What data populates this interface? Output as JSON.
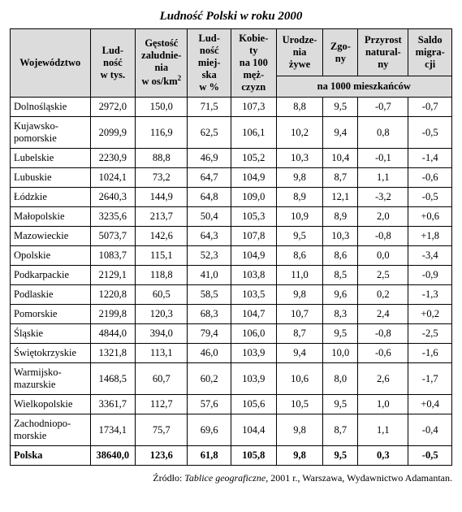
{
  "title": "Ludność Polski w roku 2000",
  "headers": {
    "woj": "Województwo",
    "ludnosc": "Lud-\nność\nw tys.",
    "gestosc_pre": "Gęstość\nzaludnie-\nnia\nw os/km",
    "gestosc_sup": "2",
    "miejska": "Lud-\nność\nmiej-\nska\nw %",
    "kobiety": "Kobie-\nty\nna 100\nmęż-\nczyzn",
    "urodzenia": "Urodze-\nnia\nżywe",
    "zgony": "Zgo-\nny",
    "przyrost": "Przyrost\nnatural-\nny",
    "saldo": "Saldo\nmigra-\ncji",
    "subhead": "na 1000 mieszkańców"
  },
  "rows": [
    {
      "name": "Dolnośląskie",
      "ludnosc": "2972,0",
      "gestosc": "150,0",
      "miejska": "71,5",
      "kobiety": "107,3",
      "urodzenia": "8,8",
      "zgony": "9,5",
      "przyrost": "-0,7",
      "saldo": "-0,7"
    },
    {
      "name": "Kujawsko-\npomorskie",
      "ludnosc": "2099,9",
      "gestosc": "116,9",
      "miejska": "62,5",
      "kobiety": "106,1",
      "urodzenia": "10,2",
      "zgony": "9,4",
      "przyrost": "0,8",
      "saldo": "-0,5"
    },
    {
      "name": "Lubelskie",
      "ludnosc": "2230,9",
      "gestosc": "88,8",
      "miejska": "46,9",
      "kobiety": "105,2",
      "urodzenia": "10,3",
      "zgony": "10,4",
      "przyrost": "-0,1",
      "saldo": "-1,4"
    },
    {
      "name": "Lubuskie",
      "ludnosc": "1024,1",
      "gestosc": "73,2",
      "miejska": "64,7",
      "kobiety": "104,9",
      "urodzenia": "9,8",
      "zgony": "8,7",
      "przyrost": "1,1",
      "saldo": "-0,6"
    },
    {
      "name": "Łódzkie",
      "ludnosc": "2640,3",
      "gestosc": "144,9",
      "miejska": "64,8",
      "kobiety": "109,0",
      "urodzenia": "8,9",
      "zgony": "12,1",
      "przyrost": "-3,2",
      "saldo": "-0,5"
    },
    {
      "name": "Małopolskie",
      "ludnosc": "3235,6",
      "gestosc": "213,7",
      "miejska": "50,4",
      "kobiety": "105,3",
      "urodzenia": "10,9",
      "zgony": "8,9",
      "przyrost": "2,0",
      "saldo": "+0,6"
    },
    {
      "name": "Mazowieckie",
      "ludnosc": "5073,7",
      "gestosc": "142,6",
      "miejska": "64,3",
      "kobiety": "107,8",
      "urodzenia": "9,5",
      "zgony": "10,3",
      "przyrost": "-0,8",
      "saldo": "+1,8"
    },
    {
      "name": "Opolskie",
      "ludnosc": "1083,7",
      "gestosc": "115,1",
      "miejska": "52,3",
      "kobiety": "104,9",
      "urodzenia": "8,6",
      "zgony": "8,6",
      "przyrost": "0,0",
      "saldo": "-3,4"
    },
    {
      "name": "Podkarpackie",
      "ludnosc": "2129,1",
      "gestosc": "118,8",
      "miejska": "41,0",
      "kobiety": "103,8",
      "urodzenia": "11,0",
      "zgony": "8,5",
      "przyrost": "2,5",
      "saldo": "-0,9"
    },
    {
      "name": "Podlaskie",
      "ludnosc": "1220,8",
      "gestosc": "60,5",
      "miejska": "58,5",
      "kobiety": "103,5",
      "urodzenia": "9,8",
      "zgony": "9,6",
      "przyrost": "0,2",
      "saldo": "-1,3"
    },
    {
      "name": "Pomorskie",
      "ludnosc": "2199,8",
      "gestosc": "120,3",
      "miejska": "68,3",
      "kobiety": "104,7",
      "urodzenia": "10,7",
      "zgony": "8,3",
      "przyrost": "2,4",
      "saldo": "+0,2"
    },
    {
      "name": "Śląskie",
      "ludnosc": "4844,0",
      "gestosc": "394,0",
      "miejska": "79,4",
      "kobiety": "106,0",
      "urodzenia": "8,7",
      "zgony": "9,5",
      "przyrost": "-0,8",
      "saldo": "-2,5"
    },
    {
      "name": "Świętokrzyskie",
      "ludnosc": "1321,8",
      "gestosc": "113,1",
      "miejska": "46,0",
      "kobiety": "103,9",
      "urodzenia": "9,4",
      "zgony": "10,0",
      "przyrost": "-0,6",
      "saldo": "-1,6"
    },
    {
      "name": "Warmijsko-\nmazurskie",
      "ludnosc": "1468,5",
      "gestosc": "60,7",
      "miejska": "60,2",
      "kobiety": "103,9",
      "urodzenia": "10,6",
      "zgony": "8,0",
      "przyrost": "2,6",
      "saldo": "-1,7"
    },
    {
      "name": "Wielkopolskie",
      "ludnosc": "3361,7",
      "gestosc": "112,7",
      "miejska": "57,6",
      "kobiety": "105,6",
      "urodzenia": "10,5",
      "zgony": "9,5",
      "przyrost": "1,0",
      "saldo": "+0,4"
    },
    {
      "name": "Zachodniopo-\nmorskie",
      "ludnosc": "1734,1",
      "gestosc": "75,7",
      "miejska": "69,6",
      "kobiety": "104,4",
      "urodzenia": "9,8",
      "zgony": "8,7",
      "przyrost": "1,1",
      "saldo": "-0,4"
    }
  ],
  "total": {
    "name": "Polska",
    "ludnosc": "38640,0",
    "gestosc": "123,6",
    "miejska": "61,8",
    "kobiety": "105,8",
    "urodzenia": "9,8",
    "zgony": "9,5",
    "przyrost": "0,3",
    "saldo": "-0,5"
  },
  "source": {
    "prefix": "Źródło: ",
    "italic": "Tablice geograficzne",
    "suffix": ", 2001 r., Warszawa, Wydawnictwo Adamantan."
  }
}
